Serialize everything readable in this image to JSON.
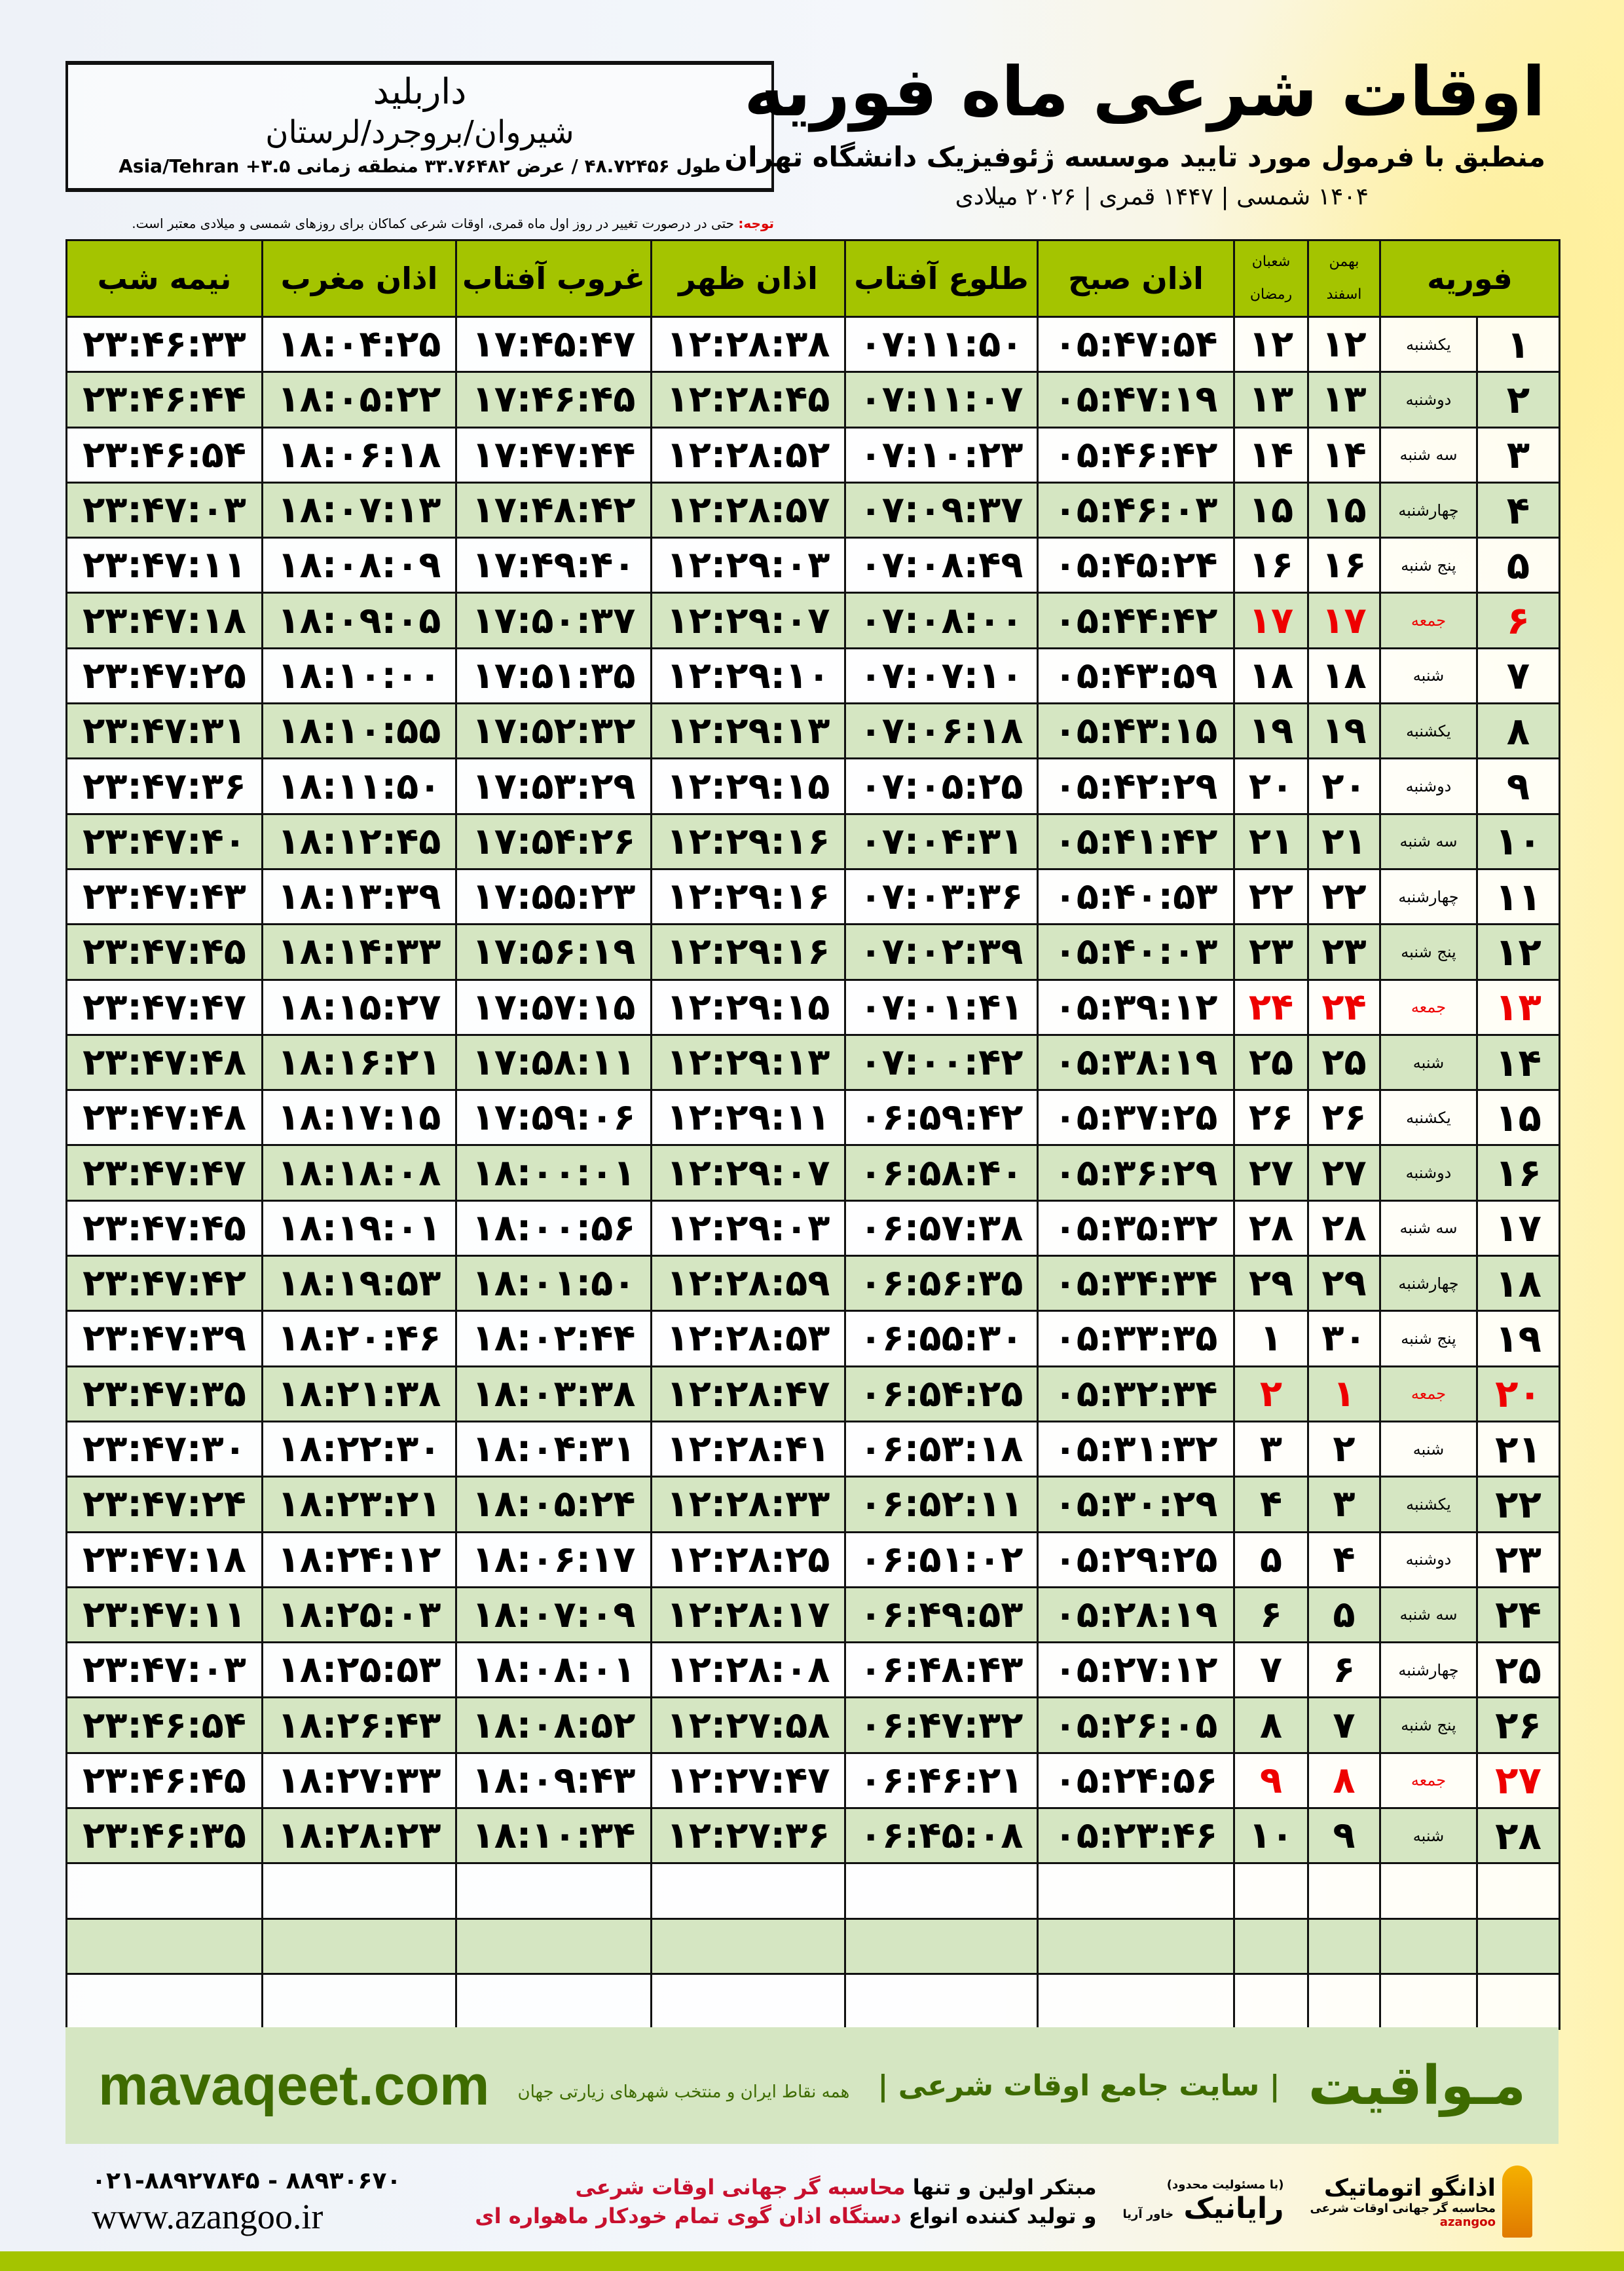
{
  "header": {
    "title": "اوقات شرعی ماه فوریه",
    "subtitle": "منطبق با فرمول مورد تایید موسسه ژئوفیزیک دانشگاه تهران",
    "years": "۱۴۰۴ شمسی | ۱۴۴۷ قمری | ۲۰۲۶ میلادی"
  },
  "location": {
    "name": "داربلید",
    "region": "شیروان/بروجرد/لرستان",
    "coords": "طول ۴۸.۷۲۴۵۶ / عرض ۳۳.۷۶۴۸۲ منطقه زمانی ۳.۵+ Asia/Tehran"
  },
  "note": {
    "label": "توجه:",
    "text": " حتی در درصورت تغییر در روز اول ماه قمری، اوقات شرعی کماکان برای روزهای شمسی و میلادی معتبر است."
  },
  "colors": {
    "header_green": "#a4c400",
    "row_green": "#d5e6c2",
    "friday_red": "#e00000",
    "brand_green": "#3e6b00"
  },
  "columns": {
    "month": "فوریه",
    "shamsi_top": "بهمن",
    "shamsi_bottom": "اسفند",
    "qamari_top": "شعبان",
    "qamari_bottom": "رمضان",
    "fajr": "اذان صبح",
    "sunrise": "طلوع آفتاب",
    "dhuhr": "اذان ظهر",
    "sunset": "غروب آفتاب",
    "maghrib": "اذان مغرب",
    "midnight": "نیمه شب"
  },
  "rows": [
    [
      "۱",
      "یکشنبه",
      "۱۲",
      "۱۲",
      "۰۵:۴۷:۵۴",
      "۰۷:۱۱:۵۰",
      "۱۲:۲۸:۳۸",
      "۱۷:۴۵:۴۷",
      "۱۸:۰۴:۲۵",
      "۲۳:۴۶:۳۳"
    ],
    [
      "۲",
      "دوشنبه",
      "۱۳",
      "۱۳",
      "۰۵:۴۷:۱۹",
      "۰۷:۱۱:۰۷",
      "۱۲:۲۸:۴۵",
      "۱۷:۴۶:۴۵",
      "۱۸:۰۵:۲۲",
      "۲۳:۴۶:۴۴"
    ],
    [
      "۳",
      "سه شنبه",
      "۱۴",
      "۱۴",
      "۰۵:۴۶:۴۲",
      "۰۷:۱۰:۲۳",
      "۱۲:۲۸:۵۲",
      "۱۷:۴۷:۴۴",
      "۱۸:۰۶:۱۸",
      "۲۳:۴۶:۵۴"
    ],
    [
      "۴",
      "چهارشنبه",
      "۱۵",
      "۱۵",
      "۰۵:۴۶:۰۳",
      "۰۷:۰۹:۳۷",
      "۱۲:۲۸:۵۷",
      "۱۷:۴۸:۴۲",
      "۱۸:۰۷:۱۳",
      "۲۳:۴۷:۰۳"
    ],
    [
      "۵",
      "پنج شنبه",
      "۱۶",
      "۱۶",
      "۰۵:۴۵:۲۴",
      "۰۷:۰۸:۴۹",
      "۱۲:۲۹:۰۳",
      "۱۷:۴۹:۴۰",
      "۱۸:۰۸:۰۹",
      "۲۳:۴۷:۱۱"
    ],
    [
      "۶",
      "جمعه",
      "۱۷",
      "۱۷",
      "۰۵:۴۴:۴۲",
      "۰۷:۰۸:۰۰",
      "۱۲:۲۹:۰۷",
      "۱۷:۵۰:۳۷",
      "۱۸:۰۹:۰۵",
      "۲۳:۴۷:۱۸"
    ],
    [
      "۷",
      "شنبه",
      "۱۸",
      "۱۸",
      "۰۵:۴۳:۵۹",
      "۰۷:۰۷:۱۰",
      "۱۲:۲۹:۱۰",
      "۱۷:۵۱:۳۵",
      "۱۸:۱۰:۰۰",
      "۲۳:۴۷:۲۵"
    ],
    [
      "۸",
      "یکشنبه",
      "۱۹",
      "۱۹",
      "۰۵:۴۳:۱۵",
      "۰۷:۰۶:۱۸",
      "۱۲:۲۹:۱۳",
      "۱۷:۵۲:۳۲",
      "۱۸:۱۰:۵۵",
      "۲۳:۴۷:۳۱"
    ],
    [
      "۹",
      "دوشنبه",
      "۲۰",
      "۲۰",
      "۰۵:۴۲:۲۹",
      "۰۷:۰۵:۲۵",
      "۱۲:۲۹:۱۵",
      "۱۷:۵۳:۲۹",
      "۱۸:۱۱:۵۰",
      "۲۳:۴۷:۳۶"
    ],
    [
      "۱۰",
      "سه شنبه",
      "۲۱",
      "۲۱",
      "۰۵:۴۱:۴۲",
      "۰۷:۰۴:۳۱",
      "۱۲:۲۹:۱۶",
      "۱۷:۵۴:۲۶",
      "۱۸:۱۲:۴۵",
      "۲۳:۴۷:۴۰"
    ],
    [
      "۱۱",
      "چهارشنبه",
      "۲۲",
      "۲۲",
      "۰۵:۴۰:۵۳",
      "۰۷:۰۳:۳۶",
      "۱۲:۲۹:۱۶",
      "۱۷:۵۵:۲۳",
      "۱۸:۱۳:۳۹",
      "۲۳:۴۷:۴۳"
    ],
    [
      "۱۲",
      "پنج شنبه",
      "۲۳",
      "۲۳",
      "۰۵:۴۰:۰۳",
      "۰۷:۰۲:۳۹",
      "۱۲:۲۹:۱۶",
      "۱۷:۵۶:۱۹",
      "۱۸:۱۴:۳۳",
      "۲۳:۴۷:۴۵"
    ],
    [
      "۱۳",
      "جمعه",
      "۲۴",
      "۲۴",
      "۰۵:۳۹:۱۲",
      "۰۷:۰۱:۴۱",
      "۱۲:۲۹:۱۵",
      "۱۷:۵۷:۱۵",
      "۱۸:۱۵:۲۷",
      "۲۳:۴۷:۴۷"
    ],
    [
      "۱۴",
      "شنبه",
      "۲۵",
      "۲۵",
      "۰۵:۳۸:۱۹",
      "۰۷:۰۰:۴۲",
      "۱۲:۲۹:۱۳",
      "۱۷:۵۸:۱۱",
      "۱۸:۱۶:۲۱",
      "۲۳:۴۷:۴۸"
    ],
    [
      "۱۵",
      "یکشنبه",
      "۲۶",
      "۲۶",
      "۰۵:۳۷:۲۵",
      "۰۶:۵۹:۴۲",
      "۱۲:۲۹:۱۱",
      "۱۷:۵۹:۰۶",
      "۱۸:۱۷:۱۵",
      "۲۳:۴۷:۴۸"
    ],
    [
      "۱۶",
      "دوشنبه",
      "۲۷",
      "۲۷",
      "۰۵:۳۶:۲۹",
      "۰۶:۵۸:۴۰",
      "۱۲:۲۹:۰۷",
      "۱۸:۰۰:۰۱",
      "۱۸:۱۸:۰۸",
      "۲۳:۴۷:۴۷"
    ],
    [
      "۱۷",
      "سه شنبه",
      "۲۸",
      "۲۸",
      "۰۵:۳۵:۳۲",
      "۰۶:۵۷:۳۸",
      "۱۲:۲۹:۰۳",
      "۱۸:۰۰:۵۶",
      "۱۸:۱۹:۰۱",
      "۲۳:۴۷:۴۵"
    ],
    [
      "۱۸",
      "چهارشنبه",
      "۲۹",
      "۲۹",
      "۰۵:۳۴:۳۴",
      "۰۶:۵۶:۳۵",
      "۱۲:۲۸:۵۹",
      "۱۸:۰۱:۵۰",
      "۱۸:۱۹:۵۳",
      "۲۳:۴۷:۴۲"
    ],
    [
      "۱۹",
      "پنج شنبه",
      "۳۰",
      "۱",
      "۰۵:۳۳:۳۵",
      "۰۶:۵۵:۳۰",
      "۱۲:۲۸:۵۳",
      "۱۸:۰۲:۴۴",
      "۱۸:۲۰:۴۶",
      "۲۳:۴۷:۳۹"
    ],
    [
      "۲۰",
      "جمعه",
      "۱",
      "۲",
      "۰۵:۳۲:۳۴",
      "۰۶:۵۴:۲۵",
      "۱۲:۲۸:۴۷",
      "۱۸:۰۳:۳۸",
      "۱۸:۲۱:۳۸",
      "۲۳:۴۷:۳۵"
    ],
    [
      "۲۱",
      "شنبه",
      "۲",
      "۳",
      "۰۵:۳۱:۳۲",
      "۰۶:۵۳:۱۸",
      "۱۲:۲۸:۴۱",
      "۱۸:۰۴:۳۱",
      "۱۸:۲۲:۳۰",
      "۲۳:۴۷:۳۰"
    ],
    [
      "۲۲",
      "یکشنبه",
      "۳",
      "۴",
      "۰۵:۳۰:۲۹",
      "۰۶:۵۲:۱۱",
      "۱۲:۲۸:۳۳",
      "۱۸:۰۵:۲۴",
      "۱۸:۲۳:۲۱",
      "۲۳:۴۷:۲۴"
    ],
    [
      "۲۳",
      "دوشنبه",
      "۴",
      "۵",
      "۰۵:۲۹:۲۵",
      "۰۶:۵۱:۰۲",
      "۱۲:۲۸:۲۵",
      "۱۸:۰۶:۱۷",
      "۱۸:۲۴:۱۲",
      "۲۳:۴۷:۱۸"
    ],
    [
      "۲۴",
      "سه شنبه",
      "۵",
      "۶",
      "۰۵:۲۸:۱۹",
      "۰۶:۴۹:۵۳",
      "۱۲:۲۸:۱۷",
      "۱۸:۰۷:۰۹",
      "۱۸:۲۵:۰۳",
      "۲۳:۴۷:۱۱"
    ],
    [
      "۲۵",
      "چهارشنبه",
      "۶",
      "۷",
      "۰۵:۲۷:۱۲",
      "۰۶:۴۸:۴۳",
      "۱۲:۲۸:۰۸",
      "۱۸:۰۸:۰۱",
      "۱۸:۲۵:۵۳",
      "۲۳:۴۷:۰۳"
    ],
    [
      "۲۶",
      "پنج شنبه",
      "۷",
      "۸",
      "۰۵:۲۶:۰۵",
      "۰۶:۴۷:۳۲",
      "۱۲:۲۷:۵۸",
      "۱۸:۰۸:۵۲",
      "۱۸:۲۶:۴۳",
      "۲۳:۴۶:۵۴"
    ],
    [
      "۲۷",
      "جمعه",
      "۸",
      "۹",
      "۰۵:۲۴:۵۶",
      "۰۶:۴۶:۲۱",
      "۱۲:۲۷:۴۷",
      "۱۸:۰۹:۴۳",
      "۱۸:۲۷:۳۳",
      "۲۳:۴۶:۴۵"
    ],
    [
      "۲۸",
      "شنبه",
      "۹",
      "۱۰",
      "۰۵:۲۳:۴۶",
      "۰۶:۴۵:۰۸",
      "۱۲:۲۷:۳۶",
      "۱۸:۱۰:۳۴",
      "۱۸:۲۸:۲۳",
      "۲۳:۴۶:۳۵"
    ]
  ],
  "friday_rows": [
    6,
    13,
    20,
    27
  ],
  "empty_rows": 3,
  "footer": {
    "brand": "مـواقیت",
    "slogan": "| سایت جامع اوقات شرعی |",
    "slogan2": "همه نقاط ایران و منتخب شهرهای زیارتی جهان",
    "site": "mavaqeet.com"
  },
  "ad": {
    "line1a": "مبتکر اولین و تنها ",
    "line1b": "محاسبه گر جهانی اوقات شرعی",
    "line2a": "و تولید کننده انواع ",
    "line2b": "دستگاه اذان گوی تمام خودکار ماهواره ای",
    "phone": "۰۲۱-۸۸۹۲۷۸۴۵ - ۸۸۹۳۰۶۷۰",
    "web": "www.azangoo.ir",
    "logo1": "رایانیک",
    "logo1_sub": "خاور آریا",
    "logo1_tag": "(با مسئولیت محدود)",
    "logo2": "اذانگو اتوماتیک",
    "logo2_sub": "محاسبه گر جهانی اوقات شرعی",
    "logo2_en": "azangoo"
  }
}
